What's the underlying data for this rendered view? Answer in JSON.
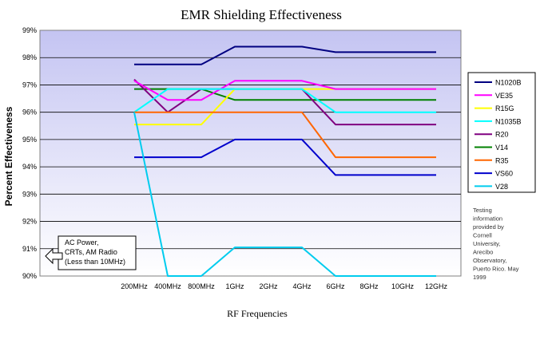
{
  "chart_data": {
    "type": "line",
    "title": "EMR Shielding Effectiveness",
    "xlabel": "RF Frequencies",
    "ylabel": "Percent Effectiveness",
    "categories": [
      "200MHz",
      "400MHz",
      "800MHz",
      "1GHz",
      "2GHz",
      "4GHz",
      "6GHz",
      "8GHz",
      "10GHz",
      "12GHz"
    ],
    "ylim": [
      90,
      99
    ],
    "yticks": [
      "90%",
      "91%",
      "92%",
      "93%",
      "94%",
      "95%",
      "96%",
      "97%",
      "98%",
      "99%"
    ],
    "grid": "horizontal",
    "legend_position": "right",
    "series": [
      {
        "name": "N1020B",
        "color": "#000080",
        "values": [
          97.75,
          97.75,
          97.75,
          98.4,
          98.4,
          98.4,
          98.2,
          98.2,
          98.2,
          98.2
        ]
      },
      {
        "name": "VE35",
        "color": "#ff00ff",
        "values": [
          97.15,
          96.45,
          96.45,
          97.15,
          97.15,
          97.15,
          96.85,
          96.85,
          96.85,
          96.85
        ]
      },
      {
        "name": "R15G",
        "color": "#ffff00",
        "values": [
          95.55,
          95.55,
          95.55,
          96.85,
          96.85,
          96.85,
          96.85,
          96.85,
          96.85,
          96.85
        ]
      },
      {
        "name": "N1035B",
        "color": "#00ffff",
        "values": [
          96.0,
          96.85,
          96.85,
          96.85,
          96.85,
          96.85,
          96.0,
          96.0,
          96.0,
          96.0
        ]
      },
      {
        "name": "R20",
        "color": "#800080",
        "values": [
          97.2,
          96.0,
          96.85,
          96.85,
          96.85,
          96.85,
          95.55,
          95.55,
          95.55,
          95.55
        ]
      },
      {
        "name": "V14",
        "color": "#008000",
        "values": [
          96.85,
          96.85,
          96.85,
          96.45,
          96.45,
          96.45,
          96.45,
          96.45,
          96.45,
          96.45
        ]
      },
      {
        "name": "R35",
        "color": "#ff6600",
        "values": [
          96.0,
          96.0,
          96.0,
          96.0,
          96.0,
          96.0,
          94.35,
          94.35,
          94.35,
          94.35
        ]
      },
      {
        "name": "VS60",
        "color": "#0000cc",
        "values": [
          94.35,
          94.35,
          94.35,
          95.0,
          95.0,
          95.0,
          93.7,
          93.7,
          93.7,
          93.7
        ]
      },
      {
        "name": "V28",
        "color": "#00ccee",
        "values": [
          96.0,
          90.0,
          90.0,
          91.05,
          91.05,
          91.05,
          90.0,
          90.0,
          90.0,
          90.0
        ]
      }
    ],
    "annotations": {
      "low_freq_box": [
        "AC Power,",
        "CRTs, AM Radio",
        "(Less than 10MHz)"
      ],
      "source_note": [
        "Testing",
        "information",
        "provided by",
        "Cornell",
        "University,",
        "Arecibo",
        "Observatory,",
        "Puerto Rico. May",
        "1999"
      ]
    }
  }
}
